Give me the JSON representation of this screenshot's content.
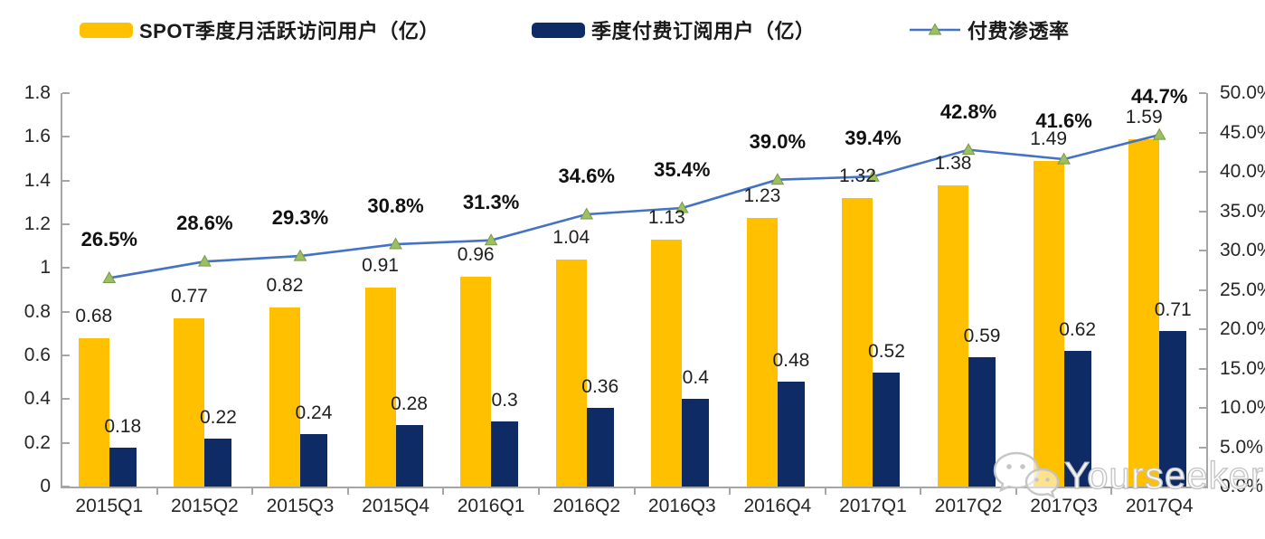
{
  "legend": [
    {
      "label": "SPOT季度月活跃访问用户（亿）",
      "swatch_color": "#FFC000",
      "type": "bar"
    },
    {
      "label": "季度付费订阅用户（亿）",
      "swatch_color": "#0E2B66",
      "type": "bar"
    },
    {
      "label": "付费渗透率",
      "line_color": "#4472C4",
      "marker_color": "#9CC05F",
      "marker_edge": "#79994A",
      "type": "line"
    }
  ],
  "chart_data": {
    "type": "bar+line",
    "categories": [
      "2015Q1",
      "2015Q2",
      "2015Q3",
      "2015Q4",
      "2016Q1",
      "2016Q2",
      "2016Q3",
      "2016Q4",
      "2017Q1",
      "2017Q2",
      "2017Q3",
      "2017Q4"
    ],
    "series": [
      {
        "name": "SPOT季度月活跃访问用户（亿）",
        "type": "bar",
        "axis": "left",
        "color": "#FFC000",
        "values": [
          0.68,
          0.77,
          0.82,
          0.91,
          0.96,
          1.04,
          1.13,
          1.23,
          1.32,
          1.38,
          1.49,
          1.59
        ],
        "labels": [
          "0.68",
          "0.77",
          "0.82",
          "0.91",
          "0.96",
          "1.04",
          "1.13",
          "1.23",
          "1.32",
          "1.38",
          "1.49",
          "1.59"
        ]
      },
      {
        "name": "季度付费订阅用户（亿）",
        "type": "bar",
        "axis": "left",
        "color": "#0E2B66",
        "values": [
          0.18,
          0.22,
          0.24,
          0.28,
          0.3,
          0.36,
          0.4,
          0.48,
          0.52,
          0.59,
          0.62,
          0.71
        ],
        "labels": [
          "0.18",
          "0.22",
          "0.24",
          "0.28",
          "0.3",
          "0.36",
          "0.4",
          "0.48",
          "0.52",
          "0.59",
          "0.62",
          "0.71"
        ]
      },
      {
        "name": "付费渗透率",
        "type": "line",
        "axis": "right",
        "color": "#4472C4",
        "marker": "triangle",
        "marker_color": "#9CC05F",
        "marker_edge": "#79994A",
        "values": [
          26.5,
          28.6,
          29.3,
          30.8,
          31.3,
          34.6,
          35.4,
          39.0,
          39.4,
          42.8,
          41.6,
          44.7
        ],
        "labels": [
          "26.5%",
          "28.6%",
          "29.3%",
          "30.8%",
          "31.3%",
          "34.6%",
          "35.4%",
          "39.0%",
          "39.4%",
          "42.8%",
          "41.6%",
          "44.7%"
        ]
      }
    ],
    "left_axis": {
      "min": 0,
      "max": 1.8,
      "step": 0.2,
      "ticks": [
        "0",
        "0.2",
        "0.4",
        "0.6",
        "0.8",
        "1",
        "1.2",
        "1.4",
        "1.6",
        "1.8"
      ]
    },
    "right_axis": {
      "min": 0,
      "max": 50,
      "step": 5,
      "ticks": [
        "0.0%",
        "5.0%",
        "10.0%",
        "15.0%",
        "20.0%",
        "25.0%",
        "30.0%",
        "35.0%",
        "40.0%",
        "45.0%",
        "50.0%"
      ]
    },
    "grid": false,
    "legend_position": "top",
    "title": ""
  },
  "watermark": {
    "text": "Yourseeker",
    "icon": "wechat-icon"
  },
  "colors": {
    "axis": "#A6A6A6",
    "axis_text": "#262626",
    "value_text": "#1F1F1F",
    "pct_text": "#111111"
  }
}
